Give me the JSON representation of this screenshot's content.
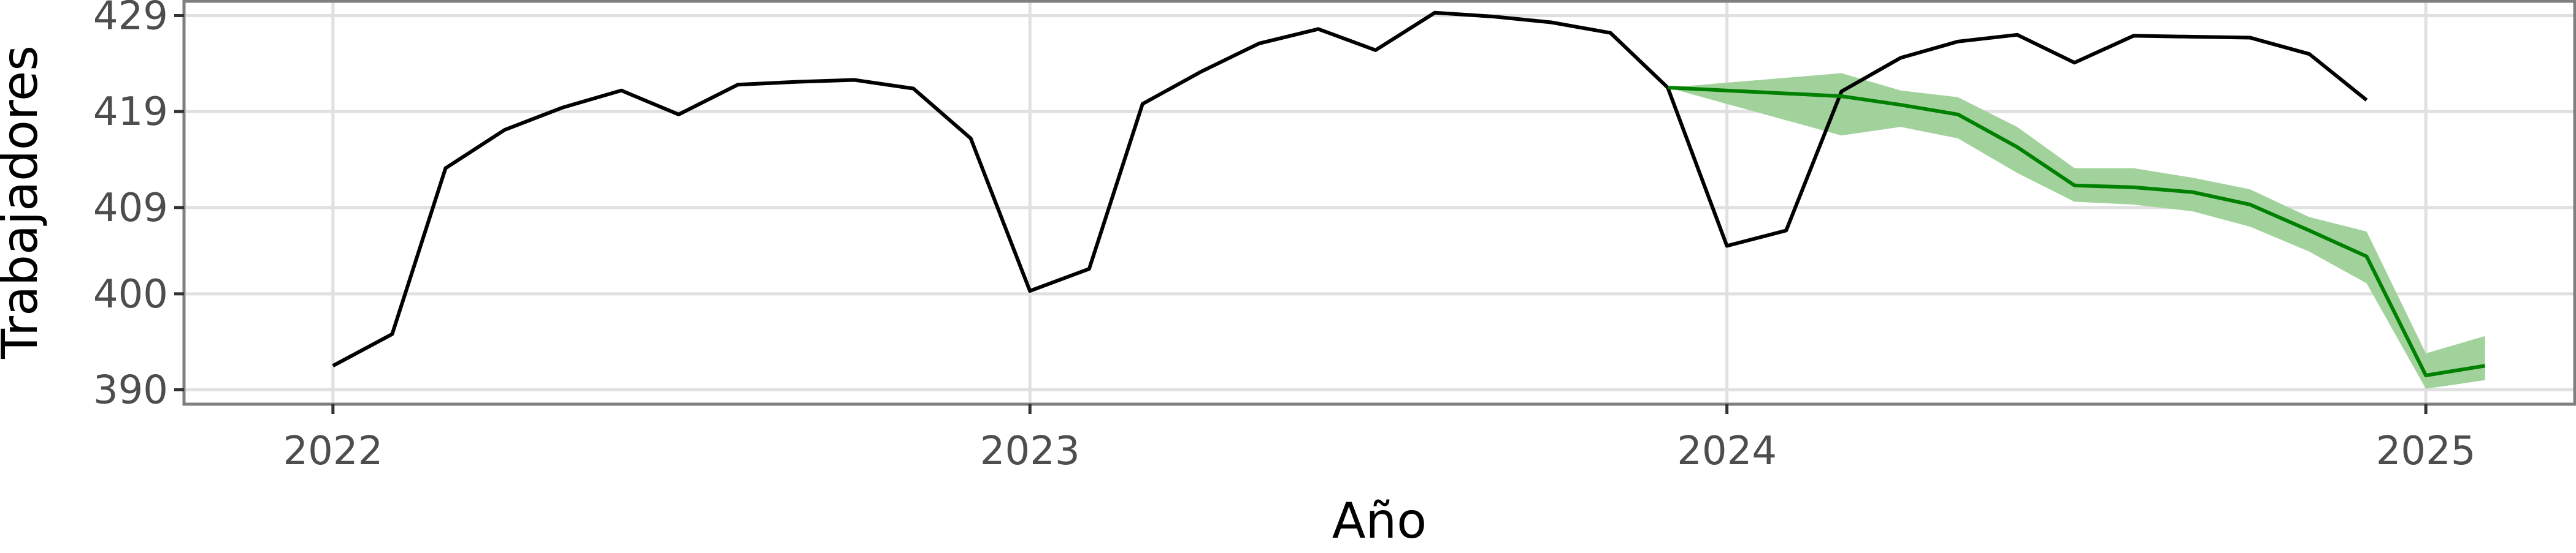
{
  "chart_data": {
    "type": "line",
    "title": "",
    "xlabel": "Año",
    "ylabel": "Trabajadores",
    "x_ticks": [
      "2022",
      "2023",
      "2024",
      "2025"
    ],
    "y_ticks": [
      "390",
      "400",
      "409",
      "419",
      "429"
    ],
    "y_tick_values": [
      390,
      400,
      409,
      419,
      429
    ],
    "xlim": [
      "2021-10-15",
      "2025-03-20"
    ],
    "ylim": [
      388.5,
      430.5
    ],
    "grid": true,
    "legend": "none",
    "series": [
      {
        "color": "#000000",
        "x": [
          "2022-01-01",
          "2022-02-01",
          "2022-03-01",
          "2022-04-01",
          "2022-05-01",
          "2022-06-01",
          "2022-07-01",
          "2022-08-01",
          "2022-09-01",
          "2022-10-01",
          "2022-11-01",
          "2022-12-01",
          "2023-01-01",
          "2023-02-01",
          "2023-03-01",
          "2023-04-01",
          "2023-05-01",
          "2023-06-01",
          "2023-07-01",
          "2023-08-01",
          "2023-09-01",
          "2023-10-01",
          "2023-11-01",
          "2023-12-01",
          "2024-01-01",
          "2024-02-01",
          "2024-03-01",
          "2024-04-01",
          "2024-05-01",
          "2024-06-01",
          "2024-07-01",
          "2024-08-01",
          "2024-09-01",
          "2024-10-01",
          "2024-11-01",
          "2024-12-01"
        ],
        "y": [
          392.5,
          395.8,
          413.1,
          417.1,
          419.4,
          421.2,
          418.7,
          421.8,
          422.1,
          422.3,
          421.4,
          416.2,
          400.3,
          402.6,
          419.8,
          423.2,
          426.1,
          427.6,
          425.4,
          429.3,
          428.9,
          428.3,
          427.2,
          421.5,
          405.0,
          406.6,
          421.1,
          424.6,
          426.3,
          427.0,
          424.1,
          426.9,
          426.8,
          426.7,
          425.0,
          420.2
        ]
      },
      {
        "color": "#008000",
        "band_color": "#a1d29c",
        "x": [
          "2023-12-01",
          "2024-03-01",
          "2024-04-01",
          "2024-05-01",
          "2024-06-01",
          "2024-07-01",
          "2024-08-01",
          "2024-09-01",
          "2024-10-01",
          "2024-11-01",
          "2024-12-01",
          "2025-01-01",
          "2025-02-01"
        ],
        "y": [
          421.5,
          420.6,
          419.7,
          418.7,
          415.3,
          411.3,
          411.1,
          410.6,
          409.3,
          406.6,
          403.9,
          391.5,
          392.5
        ],
        "lower": [
          421.5,
          416.5,
          417.4,
          416.2,
          412.6,
          409.6,
          409.3,
          408.6,
          407.0,
          404.4,
          401.1,
          390.1,
          391.0
        ],
        "upper": [
          421.5,
          423.0,
          421.2,
          420.5,
          417.4,
          413.1,
          413.1,
          412.1,
          410.9,
          408.0,
          406.5,
          393.8,
          395.6
        ]
      }
    ]
  }
}
